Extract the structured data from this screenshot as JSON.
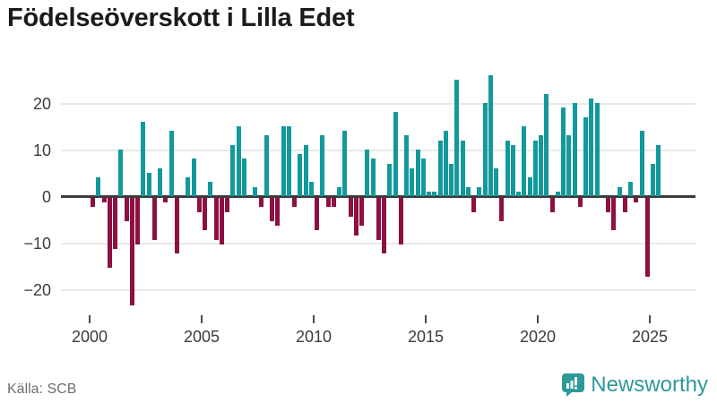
{
  "title": "Födelseöverskott i Lilla Edet",
  "source": "Källa: SCB",
  "brand": {
    "name": "Newsworthy"
  },
  "colors": {
    "positive": "#12999b",
    "negative": "#8e0f42",
    "grid": "#e8e8e8",
    "axis": "#3b3b3b",
    "tick_text": "#3c3c3c",
    "title_text": "#1b1b1b",
    "source_text": "#6f6f6f",
    "brand_teal": "#2f9899"
  },
  "chart_data": {
    "type": "bar",
    "title": "Födelseöverskott i Lilla Edet",
    "frequency": "quarterly",
    "start": "2000Q1",
    "end": "2025Q2",
    "values": [
      -2,
      4,
      -1,
      -15,
      -11,
      10,
      -5,
      -23,
      -10,
      16,
      5,
      -9,
      6,
      -1,
      14,
      -12,
      0,
      4,
      8,
      -3,
      -7,
      3,
      -9,
      -10,
      -3,
      11,
      15,
      8,
      0,
      2,
      -2,
      13,
      -5,
      -6,
      15,
      15,
      -2,
      9,
      11,
      3,
      -7,
      13,
      -2,
      -2,
      2,
      14,
      -4,
      -8,
      -6,
      10,
      8,
      -9,
      -12,
      7,
      18,
      -10,
      13,
      6,
      10,
      8,
      1,
      1,
      12,
      14,
      7,
      25,
      12,
      2,
      -3,
      2,
      20,
      26,
      6,
      -5,
      12,
      11,
      1,
      15,
      4,
      12,
      13,
      22,
      -3,
      1,
      19,
      13,
      20,
      -2,
      17,
      21,
      20,
      0,
      -3,
      -7,
      2,
      -3,
      3,
      -1,
      14,
      -17,
      7,
      11
    ],
    "years_per_row_note": "values run 2000Q1..2025Q2",
    "x_ticks": [
      2000,
      2005,
      2010,
      2015,
      2020,
      2025
    ],
    "x_tick_labels": [
      "2000",
      "2005",
      "2010",
      "2015",
      "2020",
      "2025"
    ],
    "y_ticks": [
      20,
      10,
      0,
      -10,
      -20
    ],
    "y_tick_labels": [
      "20",
      "10",
      "0",
      "−10",
      "−20"
    ],
    "ylim": [
      -23,
      26
    ],
    "grid": "horizontal",
    "legend": "none",
    "bar_color_positive": "#12999b",
    "bar_color_negative": "#8e0f42"
  }
}
